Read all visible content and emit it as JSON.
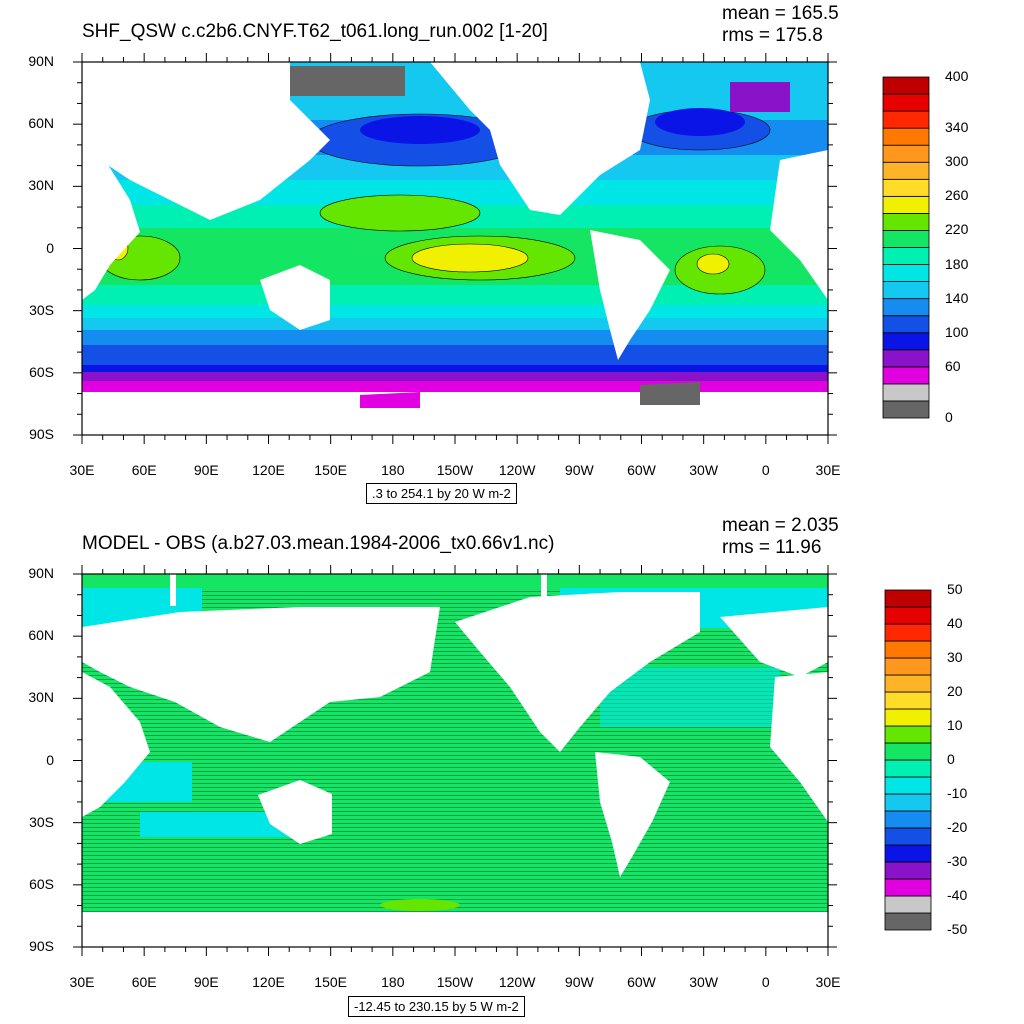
{
  "panels": [
    {
      "title": "SHF_QSW c.c2b6.CNYF.T62_t061.long_run.002 [1-20]",
      "mean_text": "mean = 165.5",
      "rms_text": "rms = 175.8",
      "range_text": ".3 to 254.1 by 20 W m-2",
      "lat_labels": [
        "90N",
        "60N",
        "30N",
        "0",
        "30S",
        "60S",
        "90S"
      ],
      "lon_labels": [
        "30E",
        "60E",
        "90E",
        "120E",
        "150E",
        "180",
        "150W",
        "120W",
        "90W",
        "60W",
        "30W",
        "0",
        "30E"
      ],
      "colorbar": {
        "colors": [
          "#666666",
          "#c8c8c8",
          "#e000e0",
          "#8a12c8",
          "#0a14e6",
          "#1450e6",
          "#148cf0",
          "#14c8f0",
          "#00e6e6",
          "#00f0b4",
          "#14e664",
          "#64e600",
          "#f0f000",
          "#ffdc28",
          "#ffb428",
          "#ff961e",
          "#ff7800",
          "#ff2800",
          "#e60000",
          "#be0000"
        ],
        "labels": [
          {
            "text": "400",
            "idx": 20
          },
          {
            "text": "340",
            "idx": 17
          },
          {
            "text": "300",
            "idx": 15
          },
          {
            "text": "260",
            "idx": 13
          },
          {
            "text": "220",
            "idx": 11
          },
          {
            "text": "180",
            "idx": 9
          },
          {
            "text": "140",
            "idx": 7
          },
          {
            "text": "100",
            "idx": 5
          },
          {
            "text": "60",
            "idx": 3
          },
          {
            "text": "0",
            "idx": 0
          }
        ]
      }
    },
    {
      "title": "MODEL - OBS (a.b27.03.mean.1984-2006_tx0.66v1.nc)",
      "mean_text": "mean = 2.035",
      "rms_text": "rms = 11.96",
      "range_text": "-12.45 to 230.15 by 5 W m-2",
      "lat_labels": [
        "90N",
        "60N",
        "30N",
        "0",
        "30S",
        "60S",
        "90S"
      ],
      "lon_labels": [
        "30E",
        "60E",
        "90E",
        "120E",
        "150E",
        "180",
        "150W",
        "120W",
        "90W",
        "60W",
        "30W",
        "0",
        "30E"
      ],
      "colorbar": {
        "colors": [
          "#666666",
          "#c8c8c8",
          "#e000e0",
          "#8a12c8",
          "#0a14e6",
          "#1450e6",
          "#148cf0",
          "#14c8f0",
          "#00e6e6",
          "#00f0b4",
          "#14e664",
          "#64e600",
          "#f0f000",
          "#ffdc28",
          "#ffb428",
          "#ff961e",
          "#ff7800",
          "#ff2800",
          "#e60000",
          "#be0000"
        ],
        "labels": [
          {
            "text": "50",
            "idx": 20
          },
          {
            "text": "40",
            "idx": 18
          },
          {
            "text": "30",
            "idx": 16
          },
          {
            "text": "20",
            "idx": 14
          },
          {
            "text": "10",
            "idx": 12
          },
          {
            "text": "0",
            "idx": 10
          },
          {
            "text": "-10",
            "idx": 8
          },
          {
            "text": "-20",
            "idx": 6
          },
          {
            "text": "-30",
            "idx": 4
          },
          {
            "text": "-40",
            "idx": 2
          },
          {
            "text": "-50",
            "idx": 0
          }
        ]
      }
    }
  ]
}
